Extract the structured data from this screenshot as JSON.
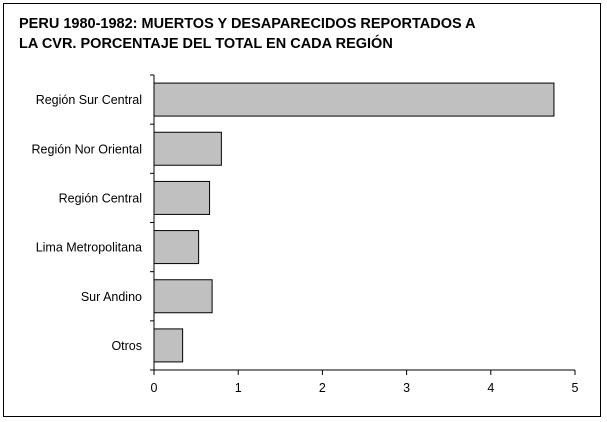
{
  "chart_data": {
    "type": "bar",
    "orientation": "horizontal",
    "title_lines": [
      "PERU 1980-1982: MUERTOS Y DESAPARECIDOS REPORTADOS A",
      "LA CVR. PORCENTAJE DEL TOTAL EN CADA REGIÓN"
    ],
    "categories": [
      "Región Sur Central",
      "Región Nor Oriental",
      "Región Central",
      "Lima Metropolitana",
      "Sur Andino",
      "Otros"
    ],
    "values": [
      4.75,
      0.8,
      0.66,
      0.53,
      0.69,
      0.34
    ],
    "xlim": [
      0,
      5
    ],
    "xticks": [
      "0",
      "1",
      "2",
      "3",
      "4",
      "5"
    ],
    "xlabel": "",
    "ylabel": "",
    "grid": false,
    "legend": "none",
    "bar_color": "#c0c0c0",
    "bar_edge_color": "#000000"
  }
}
